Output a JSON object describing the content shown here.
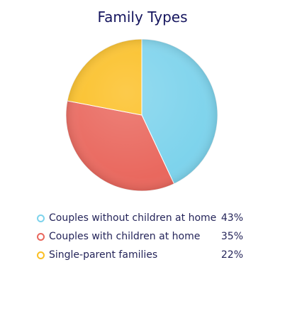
{
  "chart_data": {
    "type": "pie",
    "title": "Family Types",
    "categories": [
      "Couples without children at home",
      "Couples with children at home",
      "Single-parent families"
    ],
    "values": [
      43,
      35,
      22
    ],
    "value_labels": [
      "43%",
      "35%",
      "22%"
    ],
    "colors": [
      "#7dd3ec",
      "#e9675d",
      "#fbbf24"
    ],
    "legend_position": "bottom"
  }
}
